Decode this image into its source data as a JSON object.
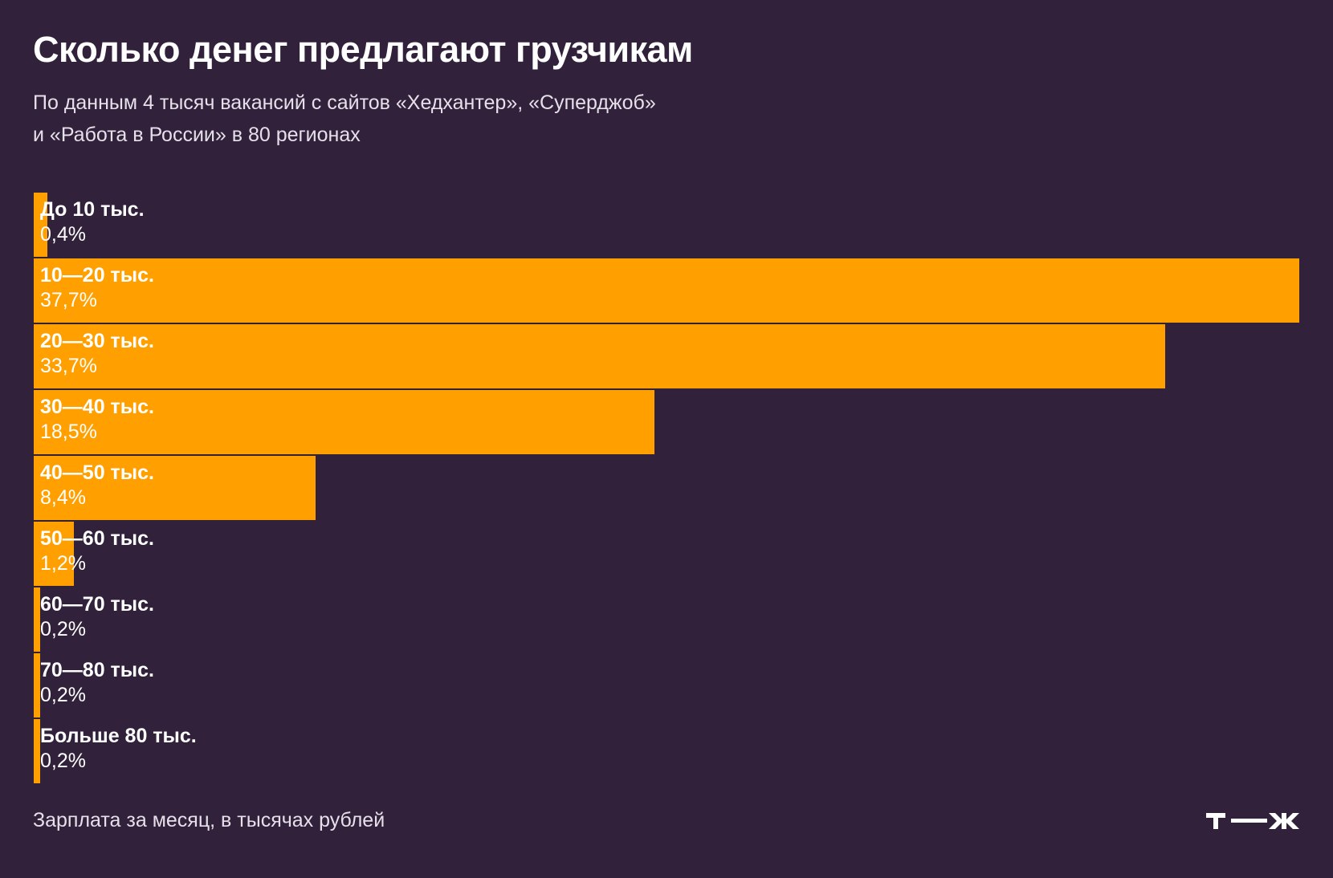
{
  "chart_data": {
    "type": "bar",
    "orientation": "horizontal",
    "title": "Сколько денег предлагают грузчикам",
    "subtitle": [
      "По данным 4 тысяч вакансий с сайтов «Хедхантер», «Суперджоб»",
      "и «Работа в России» в 80 регионах"
    ],
    "xlabel": "Зарплата за месяц, в тысячах рублей",
    "categories": [
      "До 10 тыс.",
      "10—20 тыс.",
      "20—30 тыс.",
      "30—40 тыс.",
      "40—50 тыс.",
      "50—60 тыс.",
      "60—70 тыс.",
      "70—80 тыс.",
      "Больше 80 тыс."
    ],
    "values": [
      0.4,
      37.7,
      33.7,
      18.5,
      8.4,
      1.2,
      0.2,
      0.2,
      0.2
    ],
    "value_labels": [
      "0,4%",
      "37,7%",
      "33,7%",
      "18,5%",
      "8,4%",
      "1,2%",
      "0,2%",
      "0,2%",
      "0,2%"
    ],
    "unit": "%",
    "grid": false,
    "colors": {
      "bar": "#ffa000",
      "background": "#31213b",
      "text": "#ffffff"
    }
  },
  "logo": {
    "text": "Т—Ж"
  }
}
